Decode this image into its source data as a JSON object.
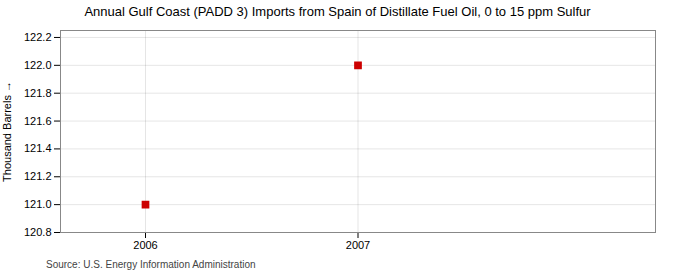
{
  "chart_data": {
    "type": "scatter",
    "title": "Annual Gulf Coast (PADD 3) Imports from Spain of Distillate Fuel Oil, 0 to 15 ppm Sulfur",
    "ylabel": "Thousand Barrels",
    "x": [
      2006,
      2007
    ],
    "values": [
      121.0,
      122.0
    ],
    "color": "#cc0000",
    "marker": "square",
    "ylim": [
      120.8,
      122.25
    ],
    "yticks": [
      120.8,
      {
        "value": 121.0,
        "label": "121.0"
      },
      121.2,
      121.4,
      121.6,
      121.8,
      {
        "value": 122.0,
        "label": "122.0"
      },
      122.2
    ],
    "xlim": [
      2005.6,
      2008.4
    ],
    "xticks": [
      2006,
      2007
    ],
    "grid": true,
    "annotations": [
      "Source: U.S. Energy Information Administration"
    ]
  }
}
